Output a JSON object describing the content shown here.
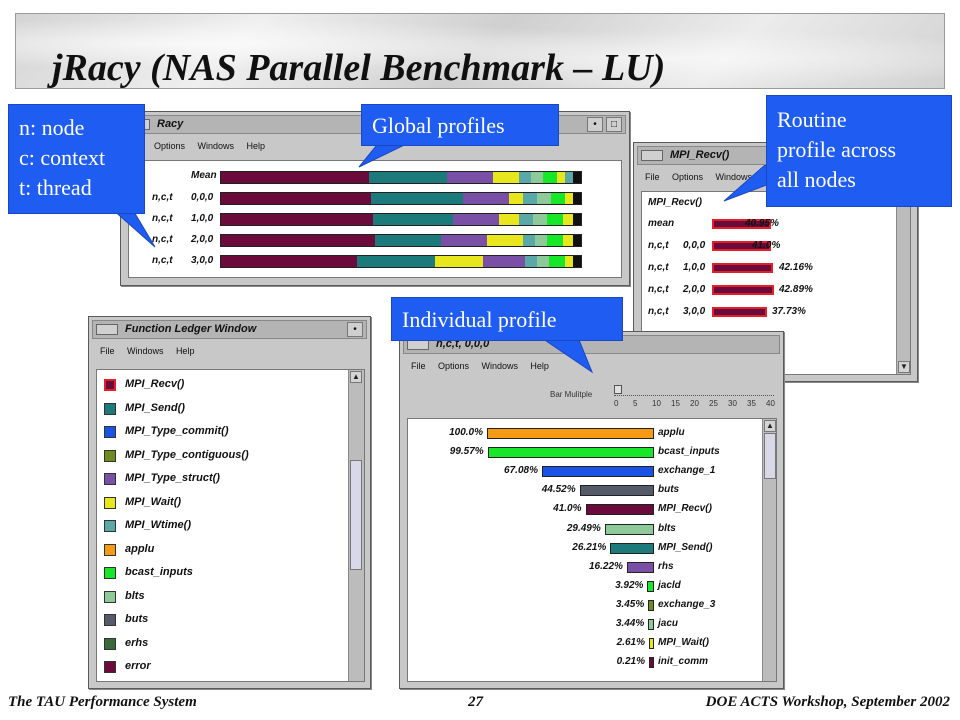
{
  "slide": {
    "title": "jRacy (NAS Parallel Benchmark – LU)"
  },
  "racy_window": {
    "title": "Racy",
    "menu": [
      "Options",
      "Windows",
      "Help"
    ],
    "rows": [
      {
        "label": "Mean"
      },
      {
        "label": "n,c,t",
        "id": "0,0,0"
      },
      {
        "label": "n,c,t",
        "id": "1,0,0"
      },
      {
        "label": "n,c,t",
        "id": "2,0,0"
      },
      {
        "label": "n,c,t",
        "id": "3,0,0"
      }
    ]
  },
  "recv_window": {
    "title": "MPI_Recv()",
    "menu": [
      "File",
      "Options",
      "Windows"
    ],
    "header": "MPI_Recv()",
    "rows": [
      {
        "label": "mean",
        "id": "",
        "value_text": "40.95%",
        "value": 40.95
      },
      {
        "label": "n,c,t",
        "id": "0,0,0",
        "value_text": "41.0%",
        "value": 41.0
      },
      {
        "label": "n,c,t",
        "id": "1,0,0",
        "value_text": "42.16%",
        "value": 42.16
      },
      {
        "label": "n,c,t",
        "id": "2,0,0",
        "value_text": "42.89%",
        "value": 42.89
      },
      {
        "label": "n,c,t",
        "id": "3,0,0",
        "value_text": "37.73%",
        "value": 37.73
      }
    ]
  },
  "ledger_window": {
    "title": "Function Ledger Window",
    "menu": [
      "File",
      "Windows",
      "Help"
    ],
    "items": [
      {
        "label": "MPI_Recv()",
        "color": "#6b0b3b",
        "selected": true
      },
      {
        "label": "MPI_Send()",
        "color": "#1c7a7a"
      },
      {
        "label": "MPI_Type_commit()",
        "color": "#1a52e6"
      },
      {
        "label": "MPI_Type_contiguous()",
        "color": "#6f8a1e"
      },
      {
        "label": "MPI_Type_struct()",
        "color": "#7a4fa6"
      },
      {
        "label": "MPI_Wait()",
        "color": "#e8e61c"
      },
      {
        "label": "MPI_Wtime()",
        "color": "#5aa8a8"
      },
      {
        "label": "applu",
        "color": "#f59a14"
      },
      {
        "label": "bcast_inputs",
        "color": "#18e628"
      },
      {
        "label": "blts",
        "color": "#8ec99a"
      },
      {
        "label": "buts",
        "color": "#545a6a"
      },
      {
        "label": "erhs",
        "color": "#3a6a3a"
      },
      {
        "label": "error",
        "color": "#6b0b3b"
      }
    ]
  },
  "individual_window": {
    "title": "n,c,t, 0,0,0",
    "menu": [
      "File",
      "Options",
      "Windows",
      "Help"
    ],
    "slider_label": "Bar Mulitple",
    "slider_ticks": [
      "0",
      "5",
      "10",
      "15",
      "20",
      "25",
      "30",
      "35",
      "40"
    ],
    "rows": [
      {
        "pct": "100.0%",
        "value": 100.0,
        "name": "applu",
        "color": "#f59a14"
      },
      {
        "pct": "99.57%",
        "value": 99.57,
        "name": "bcast_inputs",
        "color": "#18e628"
      },
      {
        "pct": "67.08%",
        "value": 67.08,
        "name": "exchange_1",
        "color": "#1a52e6"
      },
      {
        "pct": "44.52%",
        "value": 44.52,
        "name": "buts",
        "color": "#545a6a"
      },
      {
        "pct": "41.0%",
        "value": 41.0,
        "name": "MPI_Recv()",
        "color": "#6b0b3b"
      },
      {
        "pct": "29.49%",
        "value": 29.49,
        "name": "blts",
        "color": "#8ec99a"
      },
      {
        "pct": "26.21%",
        "value": 26.21,
        "name": "MPI_Send()",
        "color": "#1c7a7a"
      },
      {
        "pct": "16.22%",
        "value": 16.22,
        "name": "rhs",
        "color": "#7a4fa6"
      },
      {
        "pct": "3.92%",
        "value": 3.92,
        "name": "jacld",
        "color": "#18e628"
      },
      {
        "pct": "3.45%",
        "value": 3.45,
        "name": "exchange_3",
        "color": "#6f8a1e"
      },
      {
        "pct": "3.44%",
        "value": 3.44,
        "name": "jacu",
        "color": "#8ec99a"
      },
      {
        "pct": "2.61%",
        "value": 2.61,
        "name": "MPI_Wait()",
        "color": "#e8e61c"
      },
      {
        "pct": "0.21%",
        "value": 0.21,
        "name": "init_comm",
        "color": "#6b0b3b"
      }
    ]
  },
  "callouts": {
    "legend": [
      "n: node",
      "c: context",
      "t: thread"
    ],
    "global": "Global profiles",
    "routine": [
      "Routine",
      "profile across",
      "all nodes"
    ],
    "individual": "Individual profile"
  },
  "footer": {
    "left": "The TAU Performance System",
    "center": "27",
    "right": "DOE ACTS Workshop, September 2002"
  },
  "colors": {
    "callout_blue": "#1f5cf2",
    "mpi_recv": "#6b0b3b",
    "mpi_send": "#1c7a7a"
  }
}
